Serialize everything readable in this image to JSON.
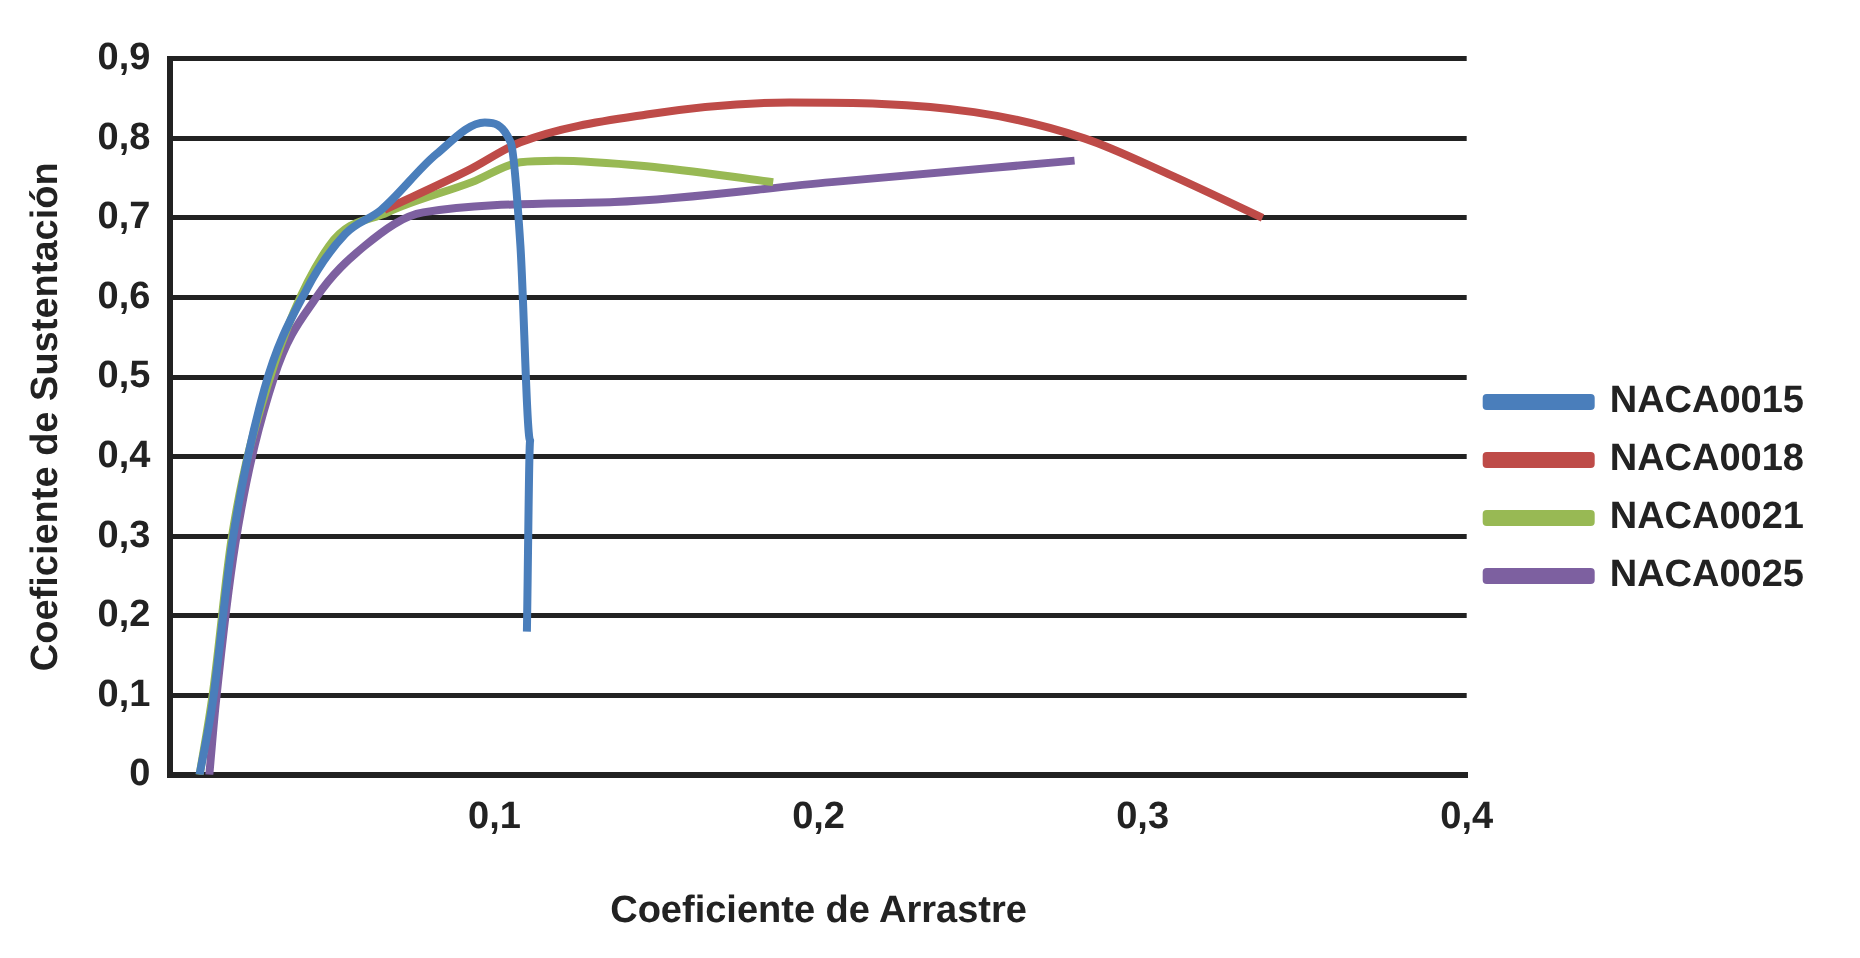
{
  "chart_data": {
    "type": "line",
    "xlabel": "Coeficiente de Arrastre",
    "ylabel": "Coeficiente de Sustentación",
    "xlim": [
      0,
      0.4
    ],
    "xticks": [
      {
        "value": 0,
        "label": null
      },
      {
        "value": 0.1,
        "label": "0,1"
      },
      {
        "value": 0.2,
        "label": "0,2"
      },
      {
        "value": 0.3,
        "label": "0,3"
      },
      {
        "value": 0.4,
        "label": "0,4"
      }
    ],
    "ylim": [
      0,
      0.9
    ],
    "yticks": [
      {
        "value": 0,
        "label": "0"
      },
      {
        "value": 0.1,
        "label": "0,1"
      },
      {
        "value": 0.2,
        "label": "0,2"
      },
      {
        "value": 0.3,
        "label": "0,3"
      },
      {
        "value": 0.4,
        "label": "0,4"
      },
      {
        "value": 0.5,
        "label": "0,5"
      },
      {
        "value": 0.6,
        "label": "0,6"
      },
      {
        "value": 0.7,
        "label": "0,7"
      },
      {
        "value": 0.8,
        "label": "0,8"
      },
      {
        "value": 0.9,
        "label": "0,9"
      }
    ],
    "grid": "y",
    "legend": "right",
    "marker": "none",
    "line_style": "solid",
    "series": [
      {
        "name": "NACA0015",
        "color": "#4a7ebb",
        "x": [
          0.009,
          0.013,
          0.019,
          0.029,
          0.042,
          0.054,
          0.065,
          0.082,
          0.097,
          0.105,
          0.108,
          0.111,
          0.11
        ],
        "values": [
          0,
          0.09,
          0.29,
          0.485,
          0.61,
          0.68,
          0.71,
          0.78,
          0.82,
          0.795,
          0.665,
          0.42,
          0.18
        ]
      },
      {
        "name": "NACA0018",
        "color": "#be4b48",
        "x": [
          0.066,
          0.092,
          0.108,
          0.147,
          0.191,
          0.248,
          0.282,
          0.308,
          0.337
        ],
        "values": [
          0.71,
          0.76,
          0.795,
          0.83,
          0.845,
          0.833,
          0.8,
          0.755,
          0.7
        ]
      },
      {
        "name": "NACA0021",
        "color": "#98b954",
        "x": [
          0.009,
          0.013,
          0.019,
          0.03,
          0.049,
          0.067,
          0.093,
          0.108,
          0.119,
          0.147,
          0.186
        ],
        "values": [
          0,
          0.1,
          0.3,
          0.49,
          0.665,
          0.707,
          0.745,
          0.77,
          0.772,
          0.765,
          0.745
        ]
      },
      {
        "name": "NACA0025",
        "color": "#7d60a0",
        "x": [
          0.012,
          0.014,
          0.02,
          0.032,
          0.045,
          0.06,
          0.078,
          0.137,
          0.204,
          0.279
        ],
        "values": [
          0,
          0.09,
          0.29,
          0.5,
          0.6,
          0.665,
          0.707,
          0.72,
          0.745,
          0.772
        ]
      }
    ]
  }
}
